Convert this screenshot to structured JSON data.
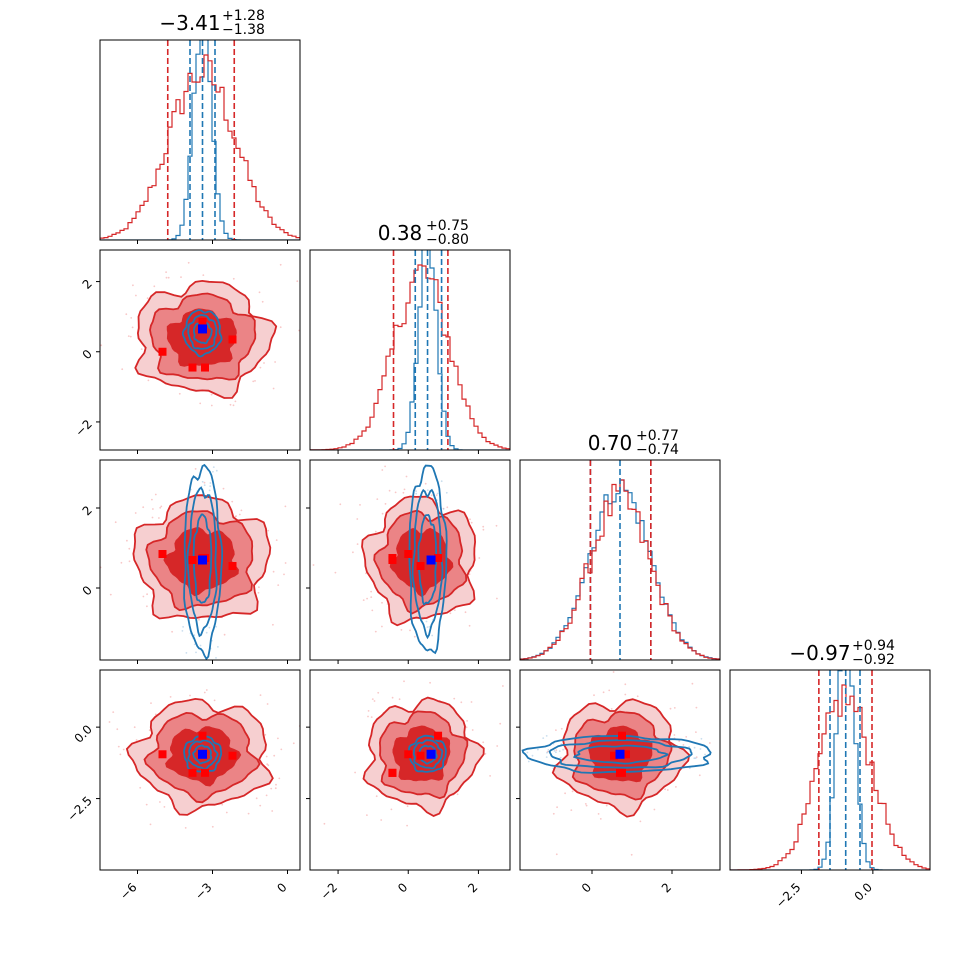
{
  "colors": {
    "posterior_a": "#d62728",
    "posterior_b": "#1f77b4",
    "point_truth": "#0000ff",
    "point_samples": "#ff0000",
    "fill_levels": [
      "#f6cfd0",
      "#eb8486",
      "#d62728"
    ]
  },
  "chart_data": {
    "type": "corner",
    "parameters": [
      {
        "index": 0,
        "median": "−3.41",
        "plus": "+1.28",
        "minus": "−1.38",
        "range": [
          -7.5,
          0.5
        ],
        "ticks": [
          -6,
          -3,
          0
        ],
        "tick_labels": [
          "−6",
          "−3",
          "0"
        ]
      },
      {
        "index": 1,
        "median": "0.38",
        "plus": "+0.75",
        "minus": "−0.80",
        "range": [
          -2.8,
          2.9
        ],
        "ticks": [
          -2,
          0,
          2
        ],
        "tick_labels": [
          "−2",
          "0",
          "2"
        ]
      },
      {
        "index": 2,
        "median": "0.70",
        "plus": "+0.77",
        "minus": "−0.74",
        "range": [
          -1.8,
          3.2
        ],
        "ticks": [
          0,
          2
        ],
        "tick_labels": [
          "0",
          "2"
        ]
      },
      {
        "index": 3,
        "median": "−0.97",
        "plus": "+0.94",
        "minus": "−0.92",
        "range": [
          -5.0,
          2.0
        ],
        "ticks": [
          -2.5,
          0.0
        ],
        "tick_labels": [
          "−2.5",
          "0.0"
        ]
      }
    ],
    "marginal_quantiles": {
      "red": [
        [
          -4.79,
          -3.41,
          -2.13
        ],
        [
          -0.42,
          0.38,
          1.13
        ],
        [
          -0.04,
          0.7,
          1.47
        ],
        [
          -1.89,
          -0.97,
          -0.03
        ]
      ],
      "blue": [
        [
          -3.9,
          -3.4,
          -2.9
        ],
        [
          0.2,
          0.55,
          0.95
        ],
        [
          -0.04,
          0.7,
          1.47
        ],
        [
          -1.5,
          -0.95,
          -0.45
        ]
      ]
    },
    "marginal_spread": {
      "red": [
        1.33,
        0.78,
        0.76,
        0.93
      ],
      "blue": [
        0.35,
        0.25,
        0.76,
        0.3
      ]
    },
    "truth_point": [
      -3.4,
      0.65,
      0.7,
      -0.95
    ],
    "red_points": [
      [
        -5.0,
        0.0,
        0.85,
        -0.95
      ],
      [
        -3.4,
        0.85,
        0.75,
        -0.3
      ],
      [
        -2.2,
        0.35,
        0.55,
        -1.0
      ],
      [
        -3.8,
        -0.45,
        0.7,
        -1.6
      ],
      [
        -3.3,
        -0.45,
        0.75,
        -1.6
      ]
    ],
    "blue_spread_2d": {
      "0-1": [
        0.35,
        0.3
      ],
      "0-2": [
        0.35,
        1.1
      ],
      "1-2": [
        0.25,
        1.1
      ],
      "0-3": [
        0.35,
        0.3
      ],
      "1-3": [
        0.25,
        0.3
      ],
      "2-3": [
        1.1,
        0.3
      ]
    },
    "correlations_red": {
      "1-3": 0.35
    }
  }
}
